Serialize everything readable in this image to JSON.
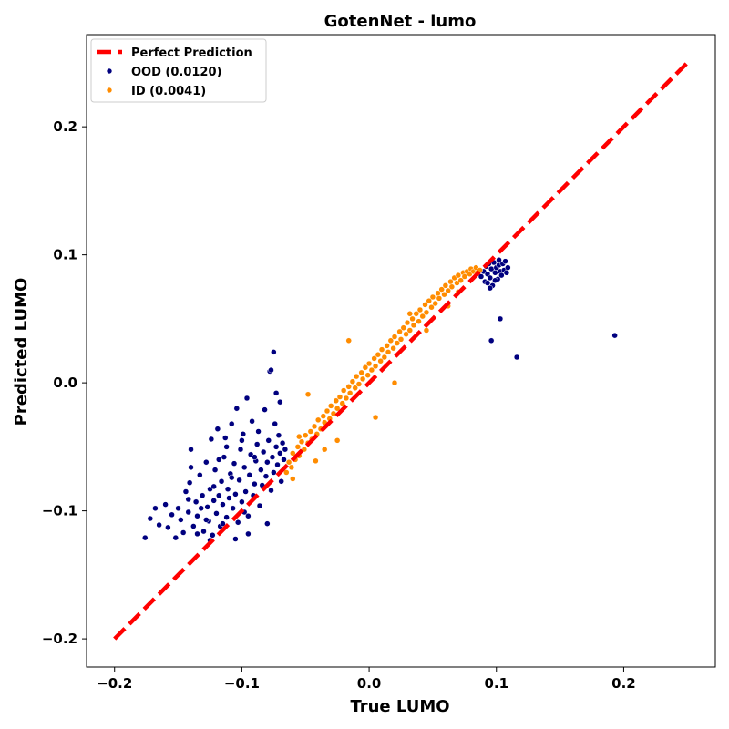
{
  "chart_data": {
    "type": "scatter",
    "title": "GotenNet - lumo",
    "xlabel": "True LUMO",
    "ylabel": "Predicted LUMO",
    "xlim": [
      -0.222,
      0.272
    ],
    "ylim": [
      -0.222,
      0.272
    ],
    "xticks": [
      -0.2,
      -0.1,
      0.0,
      0.1,
      0.2
    ],
    "yticks": [
      -0.2,
      -0.1,
      0.0,
      0.1,
      0.2
    ],
    "xtick_labels": [
      "−0.2",
      "−0.1",
      "0.0",
      "0.1",
      "0.2"
    ],
    "ytick_labels": [
      "−0.2",
      "−0.1",
      "0.0",
      "0.1",
      "0.2"
    ],
    "grid": false,
    "legend_position": "top-left",
    "reference_line": {
      "name": "Perfect Prediction",
      "x": [
        -0.2,
        0.25
      ],
      "y": [
        -0.2,
        0.25
      ],
      "color": "#ff0000",
      "style": "dashed"
    },
    "series": [
      {
        "name": "OOD (0.0120)",
        "color": "#00007f",
        "points": [
          [
            -0.176,
            -0.121
          ],
          [
            -0.172,
            -0.106
          ],
          [
            -0.168,
            -0.098
          ],
          [
            -0.165,
            -0.111
          ],
          [
            -0.16,
            -0.095
          ],
          [
            -0.158,
            -0.113
          ],
          [
            -0.155,
            -0.103
          ],
          [
            -0.152,
            -0.121
          ],
          [
            -0.15,
            -0.098
          ],
          [
            -0.148,
            -0.107
          ],
          [
            -0.146,
            -0.117
          ],
          [
            -0.144,
            -0.085
          ],
          [
            -0.142,
            -0.101
          ],
          [
            -0.141,
            -0.078
          ],
          [
            -0.14,
            -0.066
          ],
          [
            -0.14,
            -0.052
          ],
          [
            -0.138,
            -0.112
          ],
          [
            -0.136,
            -0.093
          ],
          [
            -0.135,
            -0.104
          ],
          [
            -0.133,
            -0.072
          ],
          [
            -0.131,
            -0.088
          ],
          [
            -0.13,
            -0.116
          ],
          [
            -0.128,
            -0.062
          ],
          [
            -0.127,
            -0.097
          ],
          [
            -0.126,
            -0.108
          ],
          [
            -0.125,
            -0.083
          ],
          [
            -0.124,
            -0.044
          ],
          [
            -0.123,
            -0.119
          ],
          [
            -0.122,
            -0.092
          ],
          [
            -0.121,
            -0.068
          ],
          [
            -0.12,
            -0.102
          ],
          [
            -0.119,
            -0.036
          ],
          [
            -0.118,
            -0.088
          ],
          [
            -0.117,
            -0.112
          ],
          [
            -0.116,
            -0.077
          ],
          [
            -0.115,
            -0.095
          ],
          [
            -0.114,
            -0.058
          ],
          [
            -0.113,
            -0.043
          ],
          [
            -0.112,
            -0.105
          ],
          [
            -0.111,
            -0.083
          ],
          [
            -0.11,
            -0.09
          ],
          [
            -0.109,
            -0.071
          ],
          [
            -0.108,
            -0.032
          ],
          [
            -0.107,
            -0.098
          ],
          [
            -0.106,
            -0.063
          ],
          [
            -0.105,
            -0.087
          ],
          [
            -0.104,
            -0.02
          ],
          [
            -0.103,
            -0.109
          ],
          [
            -0.102,
            -0.076
          ],
          [
            -0.101,
            -0.052
          ],
          [
            -0.1,
            -0.093
          ],
          [
            -0.099,
            -0.04
          ],
          [
            -0.098,
            -0.066
          ],
          [
            -0.097,
            -0.085
          ],
          [
            -0.096,
            -0.012
          ],
          [
            -0.095,
            -0.104
          ],
          [
            -0.094,
            -0.072
          ],
          [
            -0.093,
            -0.056
          ],
          [
            -0.092,
            -0.03
          ],
          [
            -0.091,
            -0.088
          ],
          [
            -0.09,
            -0.079
          ],
          [
            -0.089,
            -0.061
          ],
          [
            -0.088,
            -0.048
          ],
          [
            -0.087,
            -0.038
          ],
          [
            -0.086,
            -0.096
          ],
          [
            -0.085,
            -0.068
          ],
          [
            -0.084,
            -0.08
          ],
          [
            -0.083,
            -0.054
          ],
          [
            -0.082,
            -0.021
          ],
          [
            -0.081,
            -0.073
          ],
          [
            -0.08,
            -0.062
          ],
          [
            -0.079,
            -0.045
          ],
          [
            -0.078,
            0.009
          ],
          [
            -0.077,
            -0.084
          ],
          [
            -0.076,
            -0.058
          ],
          [
            -0.075,
            -0.07
          ],
          [
            -0.074,
            -0.032
          ],
          [
            -0.073,
            -0.05
          ],
          [
            -0.072,
            -0.064
          ],
          [
            -0.071,
            -0.041
          ],
          [
            -0.07,
            -0.055
          ],
          [
            -0.069,
            -0.077
          ],
          [
            -0.068,
            -0.047
          ],
          [
            -0.067,
            -0.06
          ],
          [
            -0.066,
            -0.052
          ],
          [
            -0.075,
            0.024
          ],
          [
            -0.077,
            0.01
          ],
          [
            -0.073,
            -0.008
          ],
          [
            -0.07,
            -0.015
          ],
          [
            -0.08,
            -0.11
          ],
          [
            -0.095,
            -0.118
          ],
          [
            -0.105,
            -0.122
          ],
          [
            -0.115,
            -0.11
          ],
          [
            -0.125,
            -0.123
          ],
          [
            -0.135,
            -0.118
          ],
          [
            -0.118,
            -0.06
          ],
          [
            -0.112,
            -0.05
          ],
          [
            -0.1,
            -0.045
          ],
          [
            -0.09,
            -0.058
          ],
          [
            -0.108,
            -0.074
          ],
          [
            -0.122,
            -0.081
          ],
          [
            -0.132,
            -0.098
          ],
          [
            -0.142,
            -0.091
          ],
          [
            -0.128,
            -0.107
          ],
          [
            -0.098,
            -0.101
          ],
          [
            0.088,
            0.083
          ],
          [
            0.09,
            0.087
          ],
          [
            0.091,
            0.079
          ],
          [
            0.092,
            0.091
          ],
          [
            0.093,
            0.085
          ],
          [
            0.094,
            0.093
          ],
          [
            0.095,
            0.082
          ],
          [
            0.096,
            0.089
          ],
          [
            0.097,
            0.076
          ],
          [
            0.098,
            0.094
          ],
          [
            0.099,
            0.086
          ],
          [
            0.1,
            0.09
          ],
          [
            0.101,
            0.081
          ],
          [
            0.102,
            0.092
          ],
          [
            0.103,
            0.087
          ],
          [
            0.104,
            0.084
          ],
          [
            0.105,
            0.093
          ],
          [
            0.106,
            0.088
          ],
          [
            0.107,
            0.095
          ],
          [
            0.108,
            0.086
          ],
          [
            0.109,
            0.09
          ],
          [
            0.095,
            0.074
          ],
          [
            0.093,
            0.078
          ],
          [
            0.102,
            0.096
          ],
          [
            0.099,
            0.08
          ],
          [
            0.103,
            0.05
          ],
          [
            0.096,
            0.033
          ],
          [
            0.116,
            0.02
          ],
          [
            0.193,
            0.037
          ]
        ]
      },
      {
        "name": "ID (0.0041)",
        "color": "#ff8c00",
        "points": [
          [
            -0.065,
            -0.07
          ],
          [
            -0.063,
            -0.062
          ],
          [
            -0.061,
            -0.066
          ],
          [
            -0.06,
            -0.055
          ],
          [
            -0.058,
            -0.06
          ],
          [
            -0.056,
            -0.05
          ],
          [
            -0.055,
            -0.057
          ],
          [
            -0.053,
            -0.046
          ],
          [
            -0.051,
            -0.052
          ],
          [
            -0.05,
            -0.041
          ],
          [
            -0.048,
            -0.047
          ],
          [
            -0.046,
            -0.038
          ],
          [
            -0.045,
            -0.044
          ],
          [
            -0.043,
            -0.034
          ],
          [
            -0.041,
            -0.04
          ],
          [
            -0.04,
            -0.029
          ],
          [
            -0.038,
            -0.036
          ],
          [
            -0.036,
            -0.026
          ],
          [
            -0.035,
            -0.031
          ],
          [
            -0.033,
            -0.022
          ],
          [
            -0.031,
            -0.028
          ],
          [
            -0.03,
            -0.018
          ],
          [
            -0.028,
            -0.024
          ],
          [
            -0.026,
            -0.014
          ],
          [
            -0.025,
            -0.02
          ],
          [
            -0.023,
            -0.011
          ],
          [
            -0.021,
            -0.016
          ],
          [
            -0.02,
            -0.006
          ],
          [
            -0.018,
            -0.012
          ],
          [
            -0.016,
            -0.003
          ],
          [
            -0.015,
            -0.008
          ],
          [
            -0.013,
            0.001
          ],
          [
            -0.011,
            -0.004
          ],
          [
            -0.01,
            0.005
          ],
          [
            -0.008,
            -0.001
          ],
          [
            -0.006,
            0.008
          ],
          [
            -0.005,
            0.003
          ],
          [
            -0.003,
            0.012
          ],
          [
            -0.001,
            0.006
          ],
          [
            0.0,
            0.015
          ],
          [
            0.002,
            0.01
          ],
          [
            0.004,
            0.019
          ],
          [
            0.005,
            0.013
          ],
          [
            0.007,
            0.022
          ],
          [
            0.009,
            0.017
          ],
          [
            0.01,
            0.026
          ],
          [
            0.012,
            0.02
          ],
          [
            0.014,
            0.029
          ],
          [
            0.015,
            0.024
          ],
          [
            0.017,
            0.033
          ],
          [
            0.019,
            0.027
          ],
          [
            0.02,
            0.036
          ],
          [
            0.022,
            0.031
          ],
          [
            0.024,
            0.04
          ],
          [
            0.025,
            0.034
          ],
          [
            0.027,
            0.043
          ],
          [
            0.029,
            0.038
          ],
          [
            0.03,
            0.047
          ],
          [
            0.032,
            0.041
          ],
          [
            0.034,
            0.05
          ],
          [
            0.035,
            0.045
          ],
          [
            0.037,
            0.054
          ],
          [
            0.039,
            0.048
          ],
          [
            0.04,
            0.057
          ],
          [
            0.042,
            0.052
          ],
          [
            0.044,
            0.061
          ],
          [
            0.045,
            0.055
          ],
          [
            0.047,
            0.064
          ],
          [
            0.049,
            0.059
          ],
          [
            0.05,
            0.067
          ],
          [
            0.052,
            0.062
          ],
          [
            0.054,
            0.07
          ],
          [
            0.055,
            0.066
          ],
          [
            0.057,
            0.073
          ],
          [
            0.059,
            0.069
          ],
          [
            0.06,
            0.076
          ],
          [
            0.062,
            0.072
          ],
          [
            0.064,
            0.079
          ],
          [
            0.065,
            0.075
          ],
          [
            0.067,
            0.082
          ],
          [
            0.069,
            0.078
          ],
          [
            0.07,
            0.084
          ],
          [
            0.072,
            0.08
          ],
          [
            0.074,
            0.086
          ],
          [
            0.075,
            0.083
          ],
          [
            0.077,
            0.087
          ],
          [
            0.079,
            0.085
          ],
          [
            0.08,
            0.089
          ],
          [
            0.082,
            0.087
          ],
          [
            0.084,
            0.09
          ],
          [
            0.085,
            0.086
          ],
          [
            0.087,
            0.088
          ],
          [
            -0.016,
            0.033
          ],
          [
            -0.048,
            -0.009
          ],
          [
            0.02,
            0.0
          ],
          [
            0.005,
            -0.027
          ],
          [
            -0.035,
            -0.052
          ],
          [
            -0.06,
            -0.075
          ],
          [
            0.045,
            0.041
          ],
          [
            0.07,
            0.071
          ],
          [
            -0.042,
            -0.061
          ],
          [
            -0.025,
            -0.045
          ],
          [
            0.032,
            0.054
          ],
          [
            0.062,
            0.06
          ],
          [
            -0.055,
            -0.042
          ]
        ]
      }
    ]
  }
}
